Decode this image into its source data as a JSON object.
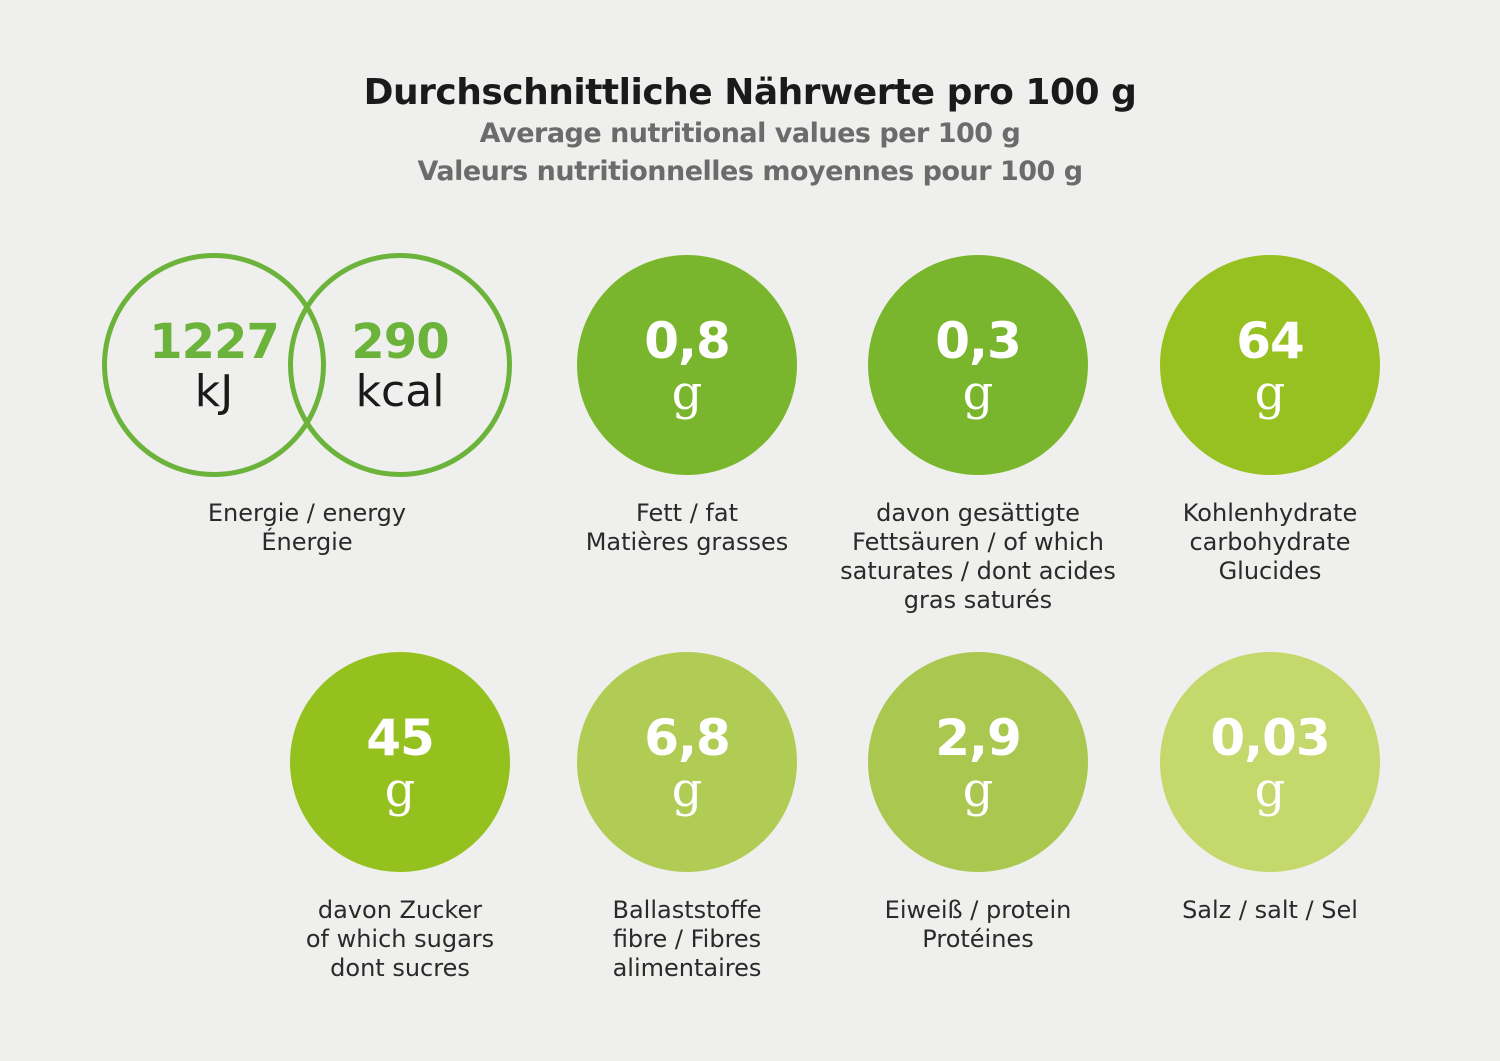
{
  "header": {
    "title": "Durchschnittliche Nährwerte pro 100 g",
    "subtitle_en": "Average nutritional values per 100 g",
    "subtitle_fr": "Valeurs nutritionnelles moyennes pour 100 g"
  },
  "energy": {
    "kj_value": "1227",
    "kj_unit": "kJ",
    "kcal_value": "290",
    "kcal_unit": "kcal",
    "label": "Energie / energy\nÉnergie",
    "color": "#6cb33c"
  },
  "nutrients": [
    {
      "value": "0,8",
      "unit": "g",
      "label": "Fett / fat\nMatières grasses",
      "color": "#7ab62d"
    },
    {
      "value": "0,3",
      "unit": "g",
      "label": "davon gesättigte\nFettsäuren / of which\nsaturates / dont acides\ngras saturés",
      "color": "#7ab62d"
    },
    {
      "value": "64",
      "unit": "g",
      "label": "Kohlenhydrate\ncarbohydrate\nGlucides",
      "color": "#97c120"
    },
    {
      "value": "45",
      "unit": "g",
      "label": "davon Zucker\nof which sugars\ndont sucres",
      "color": "#95c11f"
    },
    {
      "value": "6,8",
      "unit": "g",
      "label": "Ballaststoffe\nfibre / Fibres\nalimentaires",
      "color": "#b1cc55"
    },
    {
      "value": "2,9",
      "unit": "g",
      "label": "Eiweiß / protein\nProtéines",
      "color": "#aac84f"
    },
    {
      "value": "0,03",
      "unit": "g",
      "label": "Salz / salt / Sel",
      "color": "#c4d86c"
    }
  ]
}
